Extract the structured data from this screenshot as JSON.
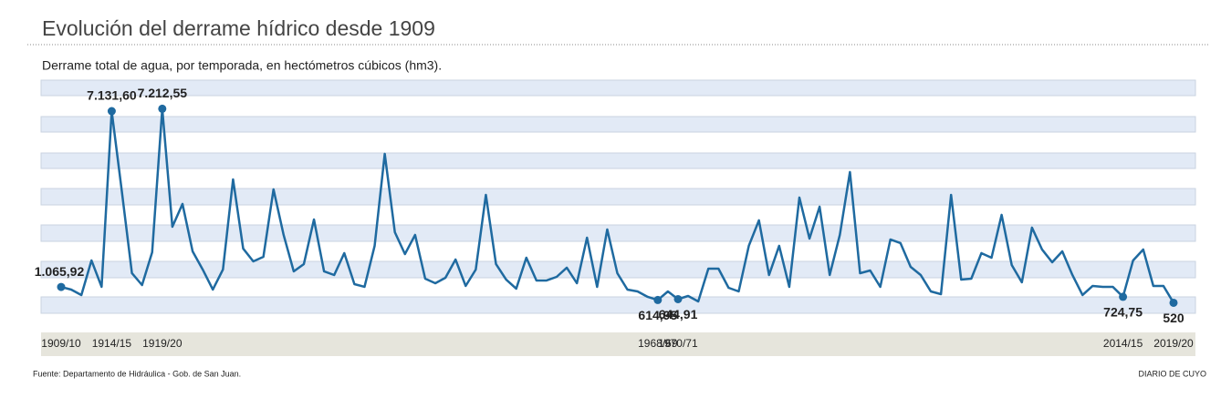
{
  "chart_data": {
    "type": "line",
    "title": "Evolución del derrame hídrico desde 1909",
    "subtitle": "Derrame total de agua, por temporada, en hectómetros cúbicos (hm3).",
    "source": "Fuente: Departamento de Hidráulica - Gob. de San Juan.",
    "brand": "DIARIO DE CUYO",
    "color": "#1f6aa0",
    "ylim": [
      0,
      8200
    ],
    "categories": [
      "1909/10",
      null,
      null,
      null,
      null,
      "1914/15",
      null,
      null,
      null,
      null,
      "1919/20",
      null,
      null,
      null,
      null,
      null,
      null,
      null,
      null,
      null,
      null,
      null,
      null,
      null,
      null,
      null,
      null,
      null,
      null,
      null,
      null,
      null,
      null,
      null,
      null,
      null,
      null,
      null,
      null,
      null,
      null,
      null,
      null,
      null,
      null,
      null,
      null,
      null,
      null,
      null,
      null,
      null,
      null,
      null,
      null,
      null,
      null,
      null,
      null,
      "1968/69",
      null,
      "1970/71",
      null,
      null,
      null,
      null,
      null,
      null,
      null,
      null,
      null,
      null,
      null,
      null,
      null,
      null,
      null,
      null,
      null,
      null,
      null,
      null,
      null,
      null,
      null,
      null,
      null,
      null,
      null,
      null,
      null,
      null,
      null,
      null,
      null,
      null,
      null,
      null,
      null,
      null,
      null,
      null,
      null,
      null,
      null,
      "2014/15",
      null,
      null,
      null,
      null,
      "2019/20"
    ],
    "values": [
      1065.92,
      974,
      786,
      1980,
      1069,
      7131.6,
      4369,
      1540,
      1131,
      2263,
      7212.55,
      3143,
      3929,
      2294,
      1666,
      974,
      1666,
      4777,
      2389,
      1949,
      2106,
      4432,
      2860,
      1603,
      1854,
      3394,
      1603,
      1477,
      2232,
      1163,
      1069,
      2483,
      5657,
      2954,
      2200,
      2860,
      1351,
      1194,
      1383,
      2012,
      1100,
      1666,
      4243,
      1854,
      1320,
      1006,
      2074,
      1289,
      1289,
      1414,
      1729,
      1194,
      2766,
      1069,
      3049,
      1540,
      974,
      911,
      723,
      614.95,
      911,
      644.91,
      754,
      566,
      1697,
      1697,
      1037,
      911,
      2483,
      3363,
      1477,
      2483,
      1069,
      4149,
      2734,
      3834,
      1477,
      2860,
      5029,
      1540,
      1634,
      1069,
      2703,
      2577,
      1760,
      1477,
      911,
      817,
      4243,
      1320,
      1351,
      2232,
      2074,
      3552,
      1823,
      1226,
      3112,
      2357,
      1917,
      2294,
      1477,
      786,
      1100,
      1069,
      1069,
      724.75,
      1980,
      2357,
      1100,
      1100,
      520
    ],
    "value_labels": [
      "1.065,92",
      null,
      null,
      null,
      null,
      "7.131,60",
      null,
      null,
      null,
      null,
      "7.212,55",
      null,
      null,
      null,
      null,
      null,
      null,
      null,
      null,
      null,
      null,
      null,
      null,
      null,
      null,
      null,
      null,
      null,
      null,
      null,
      null,
      null,
      null,
      null,
      null,
      null,
      null,
      null,
      null,
      null,
      null,
      null,
      null,
      null,
      null,
      null,
      null,
      null,
      null,
      null,
      null,
      null,
      null,
      null,
      null,
      null,
      null,
      null,
      null,
      "614,95",
      null,
      "644,91",
      null,
      null,
      null,
      null,
      null,
      null,
      null,
      null,
      null,
      null,
      null,
      null,
      null,
      null,
      null,
      null,
      null,
      null,
      null,
      null,
      null,
      null,
      null,
      null,
      null,
      null,
      null,
      null,
      null,
      null,
      null,
      null,
      null,
      null,
      null,
      null,
      null,
      null,
      null,
      null,
      null,
      null,
      null,
      "724,75",
      null,
      null,
      null,
      null,
      "520"
    ]
  }
}
